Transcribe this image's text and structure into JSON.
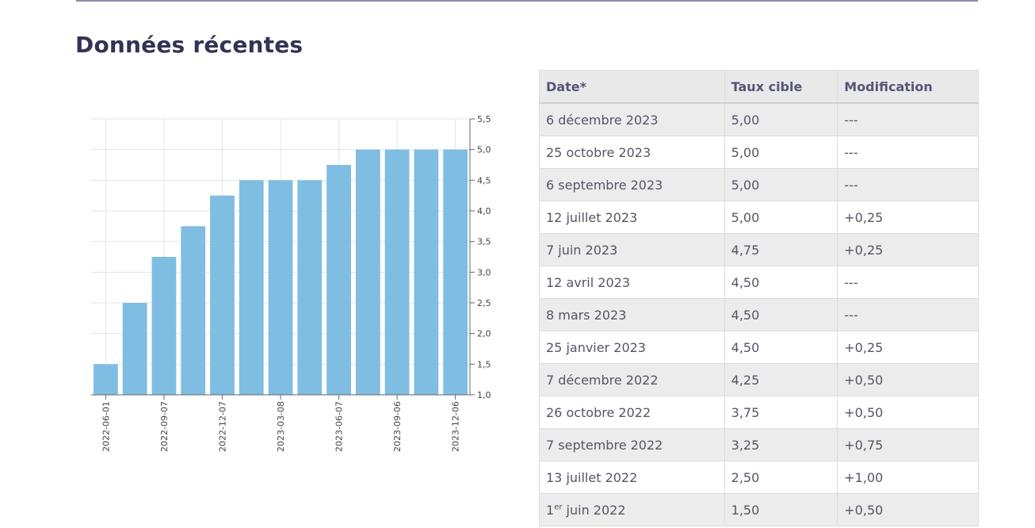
{
  "section": {
    "title": "Données récentes"
  },
  "table": {
    "headers": {
      "date": "Date*",
      "rate": "Taux cible",
      "change": "Modification"
    },
    "rows": [
      {
        "date": "6 décembre 2023",
        "rate": "5,00",
        "change": "---"
      },
      {
        "date": "25 octobre 2023",
        "rate": "5,00",
        "change": "---"
      },
      {
        "date": "6 septembre 2023",
        "rate": "5,00",
        "change": "---"
      },
      {
        "date": "12 juillet 2023",
        "rate": "5,00",
        "change": "+0,25"
      },
      {
        "date": "7 juin 2023",
        "rate": "4,75",
        "change": "+0,25"
      },
      {
        "date": "12 avril 2023",
        "rate": "4,50",
        "change": "---"
      },
      {
        "date": "8 mars 2023",
        "rate": "4,50",
        "change": "---"
      },
      {
        "date": "25 janvier 2023",
        "rate": "4,50",
        "change": "+0,25"
      },
      {
        "date": "7 décembre 2022",
        "rate": "4,25",
        "change": "+0,50"
      },
      {
        "date": "26 octobre 2022",
        "rate": "3,75",
        "change": "+0,50"
      },
      {
        "date": "7 septembre 2022",
        "rate": "3,25",
        "change": "+0,75"
      },
      {
        "date": "13 juillet 2022",
        "rate": "2,50",
        "change": "+1,00"
      },
      {
        "date_prefix": "1",
        "date_sup": "er",
        "date_rest": " juin 2022",
        "rate": "1,50",
        "change": "+0,50"
      }
    ]
  },
  "chart_data": {
    "type": "bar",
    "x": [
      "2022-06-01",
      "2022-07-13",
      "2022-09-07",
      "2022-10-26",
      "2022-12-07",
      "2023-01-25",
      "2023-03-08",
      "2023-04-12",
      "2023-06-07",
      "2023-07-12",
      "2023-09-06",
      "2023-10-25",
      "2023-12-06"
    ],
    "values": [
      1.5,
      2.5,
      3.25,
      3.75,
      4.25,
      4.5,
      4.5,
      4.5,
      4.75,
      5.0,
      5.0,
      5.0,
      5.0
    ],
    "x_tick_labels": [
      "2022-06-01",
      "2022-09-07",
      "2022-12-07",
      "2023-03-08",
      "2023-06-07",
      "2023-09-06",
      "2023-12-06"
    ],
    "y_tick_labels": [
      "1,0",
      "1,5",
      "2,0",
      "2,5",
      "3,0",
      "3,5",
      "4,0",
      "4,5",
      "5,0",
      "5,5"
    ],
    "ylim": [
      1.0,
      5.5
    ],
    "y_axis_side": "right",
    "grid": true,
    "bar_color": "#7fbde2"
  }
}
